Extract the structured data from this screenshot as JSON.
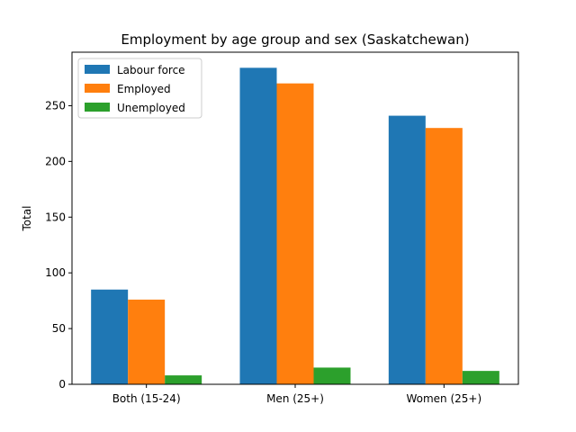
{
  "chart_data": {
    "type": "bar",
    "title": "Employment by age group and sex (Saskatchewan)",
    "xlabel": "",
    "ylabel": "Total",
    "categories": [
      "Both (15-24)",
      "Men (25+)",
      "Women (25+)"
    ],
    "series": [
      {
        "name": "Labour force",
        "values": [
          85,
          284,
          241
        ],
        "color": "#1f77b4"
      },
      {
        "name": "Employed",
        "values": [
          76,
          270,
          230
        ],
        "color": "#ff7f0e"
      },
      {
        "name": "Unemployed",
        "values": [
          8,
          15,
          12
        ],
        "color": "#2ca02c"
      }
    ],
    "yticks": [
      0,
      50,
      100,
      150,
      200,
      250
    ],
    "ylim": [
      0,
      298
    ],
    "grid": false,
    "legend_position": "top-left"
  }
}
